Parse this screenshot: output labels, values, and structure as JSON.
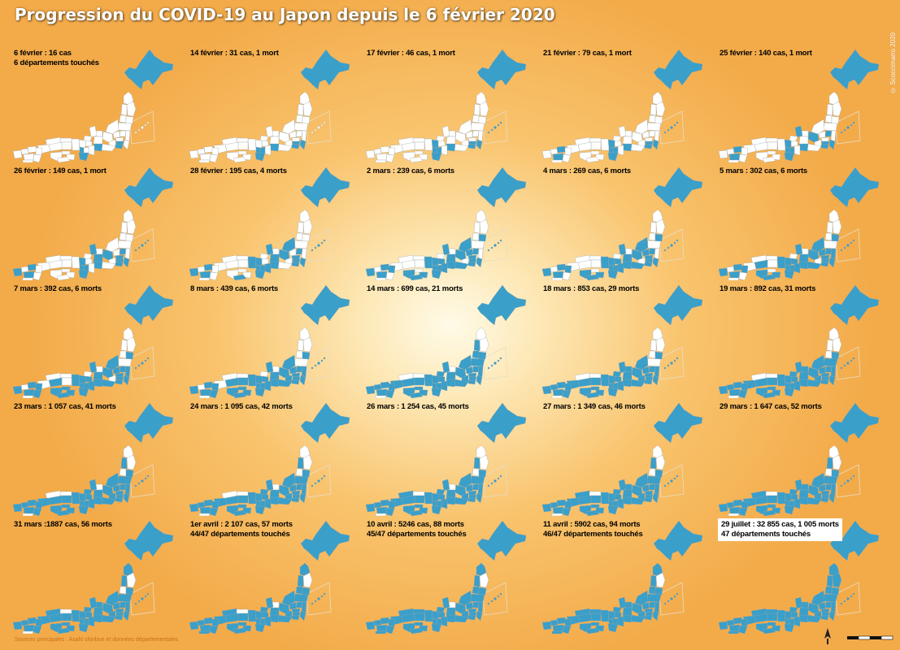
{
  "title": "Progression du COVID-19 au Japon depuis le 6 février 2020",
  "copyright": "© Scoccimarro 2020",
  "sources": "Sources principales : Asahi shinbun et données départementales",
  "colors": {
    "affected": "#3a9fc9",
    "unaffected": "#ffffff",
    "border": "#9aa3a8",
    "inset_frame": "#f6f0e4"
  },
  "maps": [
    {
      "label": "6 février : 16 cas",
      "sub": "6 départements touchés",
      "boxed": false
    },
    {
      "label": "14 février : 31 cas, 1 mort",
      "sub": "",
      "boxed": false
    },
    {
      "label": "17 février : 46 cas, 1 mort",
      "sub": "",
      "boxed": false
    },
    {
      "label": "21 février : 79 cas, 1 mort",
      "sub": "",
      "boxed": false
    },
    {
      "label": "25 février : 140 cas, 1 mort",
      "sub": "",
      "boxed": false
    },
    {
      "label": "26 février : 149 cas, 1 mort",
      "sub": "",
      "boxed": false
    },
    {
      "label": "28 février : 195 cas, 4 morts",
      "sub": "",
      "boxed": false
    },
    {
      "label": "2 mars : 239 cas, 6 morts",
      "sub": "",
      "boxed": false
    },
    {
      "label": "4 mars : 269 cas, 6 morts",
      "sub": "",
      "boxed": false
    },
    {
      "label": "5 mars : 302 cas, 6 morts",
      "sub": "",
      "boxed": false
    },
    {
      "label": "7 mars : 392 cas, 6 morts",
      "sub": "",
      "boxed": false
    },
    {
      "label": "8 mars : 439 cas, 6 morts",
      "sub": "",
      "boxed": false
    },
    {
      "label": "14 mars : 699 cas, 21 morts",
      "sub": "",
      "boxed": false
    },
    {
      "label": "18 mars : 853 cas, 29 morts",
      "sub": "",
      "boxed": false
    },
    {
      "label": "19 mars : 892 cas, 31 morts",
      "sub": "",
      "boxed": false
    },
    {
      "label": "23 mars : 1 057 cas, 41 morts",
      "sub": "",
      "boxed": false
    },
    {
      "label": "24 mars : 1 095 cas, 42 morts",
      "sub": "",
      "boxed": false
    },
    {
      "label": "26 mars : 1 254 cas, 45 morts",
      "sub": "",
      "boxed": false
    },
    {
      "label": "27 mars : 1 349 cas, 46 morts",
      "sub": "",
      "boxed": false
    },
    {
      "label": "29 mars : 1 647 cas, 52 morts",
      "sub": "",
      "boxed": false
    },
    {
      "label": "31 mars :1887 cas, 56 morts",
      "sub": "",
      "boxed": false
    },
    {
      "label": "1er avril : 2 107 cas, 57 morts",
      "sub": "44/47 départements touchés",
      "boxed": false
    },
    {
      "label": "10 avril : 5246 cas, 88 morts",
      "sub": "45/47 départements touchés",
      "boxed": false
    },
    {
      "label": "11 avril : 5902 cas, 94 morts",
      "sub": "46/47 départements touchés",
      "boxed": false
    },
    {
      "label": "29 juillet : 32 855 cas, 1 005 morts",
      "sub": "47 départements touchés",
      "boxed": true
    }
  ]
}
